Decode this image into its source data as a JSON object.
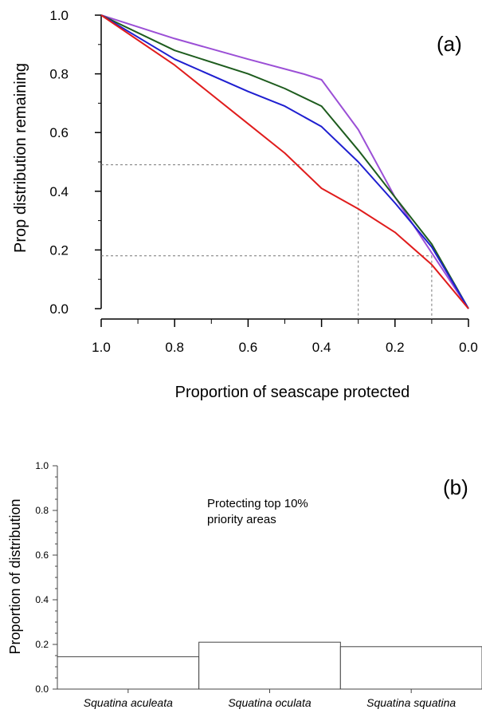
{
  "chart_data": [
    {
      "type": "line",
      "panel_label": "(a)",
      "xlabel": "Proportion of seascape protected",
      "ylabel": "Prop distribution remaining",
      "xlim": [
        1.0,
        0.0
      ],
      "ylim": [
        0.0,
        1.0
      ],
      "x_reversed": true,
      "xticks": [
        "1.0",
        "0.8",
        "0.6",
        "0.4",
        "0.2",
        "0.0"
      ],
      "yticks": [
        "0.0",
        "0.2",
        "0.4",
        "0.6",
        "0.8",
        "1.0"
      ],
      "grid": false,
      "series": [
        {
          "color": "#9b4fd6",
          "x": [
            1.0,
            0.8,
            0.6,
            0.45,
            0.4,
            0.3,
            0.2,
            0.1,
            0.0
          ],
          "y": [
            1.0,
            0.92,
            0.85,
            0.8,
            0.78,
            0.61,
            0.38,
            0.19,
            0.0
          ]
        },
        {
          "color": "#1e5c1e",
          "x": [
            1.0,
            0.8,
            0.6,
            0.5,
            0.4,
            0.3,
            0.2,
            0.1,
            0.0
          ],
          "y": [
            1.0,
            0.88,
            0.8,
            0.75,
            0.69,
            0.54,
            0.38,
            0.22,
            0.0
          ]
        },
        {
          "color": "#1f1fd0",
          "x": [
            1.0,
            0.8,
            0.6,
            0.5,
            0.4,
            0.3,
            0.2,
            0.1,
            0.0
          ],
          "y": [
            1.0,
            0.85,
            0.74,
            0.69,
            0.62,
            0.5,
            0.36,
            0.21,
            0.0
          ]
        },
        {
          "color": "#e01c1c",
          "x": [
            1.0,
            0.8,
            0.6,
            0.5,
            0.4,
            0.3,
            0.2,
            0.1,
            0.0
          ],
          "y": [
            1.0,
            0.83,
            0.63,
            0.53,
            0.41,
            0.34,
            0.26,
            0.15,
            0.0
          ]
        }
      ],
      "reference_lines": [
        {
          "x": 0.3,
          "y": 0.49
        },
        {
          "x": 0.1,
          "y": 0.18
        }
      ]
    },
    {
      "type": "bar",
      "panel_label": "(b)",
      "ylabel": "Proportion of distribution",
      "ylim": [
        0.0,
        1.0
      ],
      "yticks": [
        "0.0",
        "0.2",
        "0.4",
        "0.6",
        "0.8",
        "1.0"
      ],
      "categories": [
        "Squatina aculeata",
        "Squatina oculata",
        "Squatina squatina"
      ],
      "values": [
        0.145,
        0.21,
        0.19
      ],
      "annotation": [
        "Protecting top 10%",
        "priority areas"
      ],
      "grid": false
    }
  ]
}
